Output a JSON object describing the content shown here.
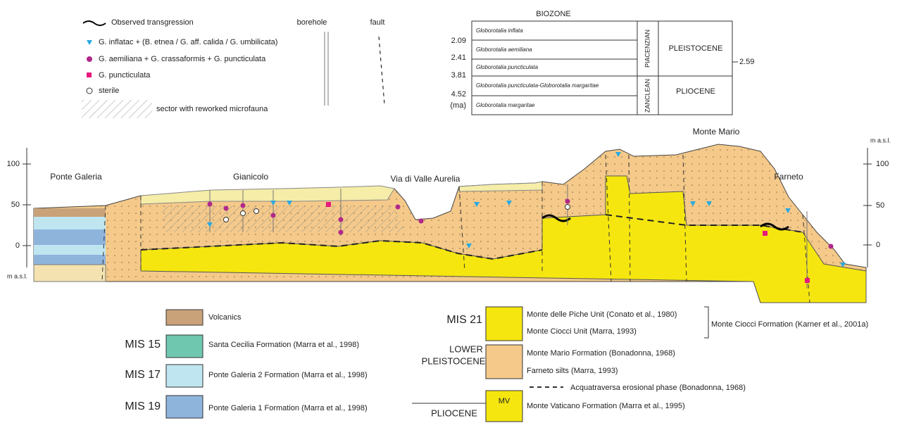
{
  "legend_top": {
    "transgression": "Observed transgression",
    "inflata": "G. inflatac + (B. etnea / G. aff. calida / G. umbilicata)",
    "aemiliana": "G. aemiliana + G. crassaformis + G. puncticulata",
    "puncticulata": "G. puncticulata",
    "sterile": "sterile",
    "reworked": "sector with reworked microfauna",
    "borehole": "borehole",
    "fault": "fault"
  },
  "biozone": {
    "title": "BIOZONE",
    "ages": [
      "2.09",
      "2.41",
      "3.81",
      "4.52",
      "(ma)"
    ],
    "zones": [
      "Globorotalia inflata",
      "Globorotalia aemiliana",
      "Globorotalia puncticulata",
      "Globorotalia puncticulata-Globorotalia margaritae",
      "Globorotalia margaritae"
    ],
    "stages": [
      "PIACENZIAN",
      "ZANCLEAN"
    ],
    "epochs": [
      "PLEISTOCENE",
      "PLIOCENE"
    ],
    "boundary": "2.59"
  },
  "section": {
    "places": [
      "Ponte Galeria",
      "Gianicolo",
      "Via di Valle Aurelia",
      "Monte Mario",
      "Farneto"
    ],
    "left_axis": [
      "100",
      "50",
      "0"
    ],
    "left_unit": "m a.s.l.",
    "right_axis": [
      "100",
      "50",
      "0"
    ],
    "right_unit": "m a.s.l."
  },
  "legend_bottom": {
    "volcanics": "Volcanics",
    "mis15": "MIS 15",
    "santa_cecilia": "Santa Cecilia Formation  (Marra et al., 1998)",
    "mis17": "MIS 17",
    "pg2": "Ponte Galeria 2 Formation  (Marra et al., 1998)",
    "mis19": "MIS 19",
    "pg1": "Ponte Galeria 1 Formation  (Marra et al., 1998)",
    "mis21": "MIS 21",
    "piche": "Monte delle Piche Unit (Conato et al., 1980)",
    "ciocci_unit": "Monte Ciocci Unit (Marra, 1993)",
    "ciocci_fm": "Monte Ciocci Formation (Karner et al., 2001a)",
    "lower_pleistocene": [
      "LOWER",
      "PLEISTOCENE"
    ],
    "monte_mario": "Monte Mario Formation  (Bonadonna, 1968)",
    "farneto": "Farneto silts  (Marra, 1993)",
    "acquatraversa": "Acquatraversa erosional phase (Bonadonna, 1968)",
    "pliocene": "PLIOCENE",
    "mv": "MV",
    "vaticano": "Monte Vaticano Formation  (Marra et al., 1995)"
  }
}
